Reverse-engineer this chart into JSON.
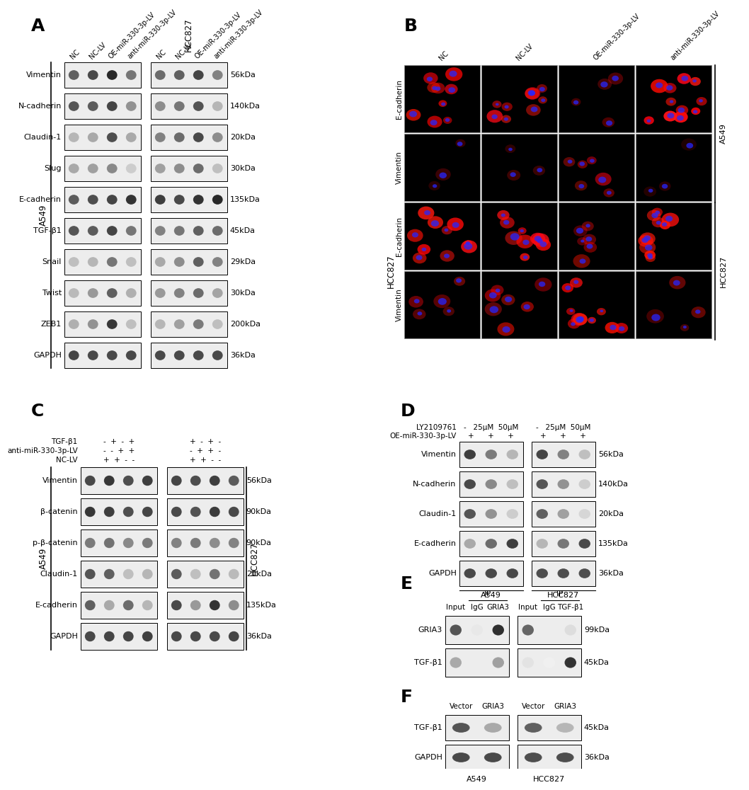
{
  "background_color": "#ffffff",
  "panel_A": {
    "label": "A",
    "col_headers": [
      "NC",
      "NC-LV",
      "OE-miR-330-3p-LV",
      "anti-miR-330-3p-LV"
    ],
    "rows": [
      {
        "label": "Vimentin",
        "kda": "56kDa",
        "i1": [
          0.7,
          0.8,
          0.95,
          0.6
        ],
        "i2": [
          0.65,
          0.7,
          0.82,
          0.55
        ]
      },
      {
        "label": "N-cadherin",
        "kda": "140kDa",
        "i1": [
          0.75,
          0.72,
          0.82,
          0.48
        ],
        "i2": [
          0.5,
          0.6,
          0.76,
          0.32
        ]
      },
      {
        "label": "Claudin-1",
        "kda": "20kDa",
        "i1": [
          0.32,
          0.38,
          0.78,
          0.38
        ],
        "i2": [
          0.55,
          0.65,
          0.8,
          0.5
        ]
      },
      {
        "label": "Slug",
        "kda": "30kDa",
        "i1": [
          0.38,
          0.42,
          0.52,
          0.22
        ],
        "i2": [
          0.42,
          0.5,
          0.65,
          0.28
        ]
      },
      {
        "label": "E-cadherin",
        "kda": "135kDa",
        "i1": [
          0.72,
          0.78,
          0.82,
          0.9
        ],
        "i2": [
          0.85,
          0.8,
          0.9,
          0.95
        ]
      },
      {
        "label": "TGF-β1",
        "kda": "45kDa",
        "i1": [
          0.75,
          0.72,
          0.82,
          0.6
        ],
        "i2": [
          0.55,
          0.6,
          0.7,
          0.65
        ]
      },
      {
        "label": "Snail",
        "kda": "29kDa",
        "i1": [
          0.28,
          0.32,
          0.6,
          0.28
        ],
        "i2": [
          0.38,
          0.5,
          0.7,
          0.55
        ]
      },
      {
        "label": "Twist",
        "kda": "30kDa",
        "i1": [
          0.3,
          0.45,
          0.7,
          0.35
        ],
        "i2": [
          0.45,
          0.55,
          0.65,
          0.4
        ]
      },
      {
        "label": "ZEB1",
        "kda": "200kDa",
        "i1": [
          0.35,
          0.48,
          0.88,
          0.28
        ],
        "i2": [
          0.32,
          0.42,
          0.58,
          0.28
        ]
      },
      {
        "label": "GAPDH",
        "kda": "36kDa",
        "i1": [
          0.82,
          0.8,
          0.8,
          0.8
        ],
        "i2": [
          0.8,
          0.8,
          0.8,
          0.8
        ]
      }
    ]
  },
  "panel_B": {
    "label": "B",
    "col_headers": [
      "NC",
      "NC-LV",
      "OE-miR-330-3p-LV",
      "anti-miR-330-3p-LV"
    ],
    "rows": [
      {
        "label": "E-cadherin",
        "red": [
          0.8,
          0.75,
          0.4,
          0.95
        ],
        "cell_type": "A549"
      },
      {
        "label": "Vimentin",
        "red": [
          0.25,
          0.3,
          0.55,
          0.2
        ],
        "cell_type": "A549"
      },
      {
        "label": "E-cadherin",
        "red": [
          0.85,
          0.8,
          0.5,
          0.9
        ],
        "cell_type": "HCC827"
      },
      {
        "label": "Vimentin",
        "red": [
          0.45,
          0.6,
          0.9,
          0.4
        ],
        "cell_type": "HCC827"
      }
    ]
  },
  "panel_C": {
    "label": "C",
    "treat_labels": [
      "TGF-β1",
      "anti-miR-330-3p-LV",
      "NC-LV"
    ],
    "treat_A549": [
      "-  +  -  +",
      "-  -  +  +",
      "+  +  -  -"
    ],
    "treat_HCC827": [
      "+  -  +  -",
      "-  +  +  -",
      "+  +  -  -"
    ],
    "rows": [
      {
        "label": "Vimentin",
        "kda": "56kDa",
        "i1": [
          0.8,
          0.88,
          0.78,
          0.85
        ],
        "i2": [
          0.82,
          0.78,
          0.85,
          0.72
        ]
      },
      {
        "label": "β-catenin",
        "kda": "90kDa",
        "i1": [
          0.88,
          0.85,
          0.78,
          0.82
        ],
        "i2": [
          0.8,
          0.76,
          0.86,
          0.8
        ]
      },
      {
        "label": "p-β-catenin",
        "kda": "90kDa",
        "i1": [
          0.58,
          0.62,
          0.52,
          0.58
        ],
        "i2": [
          0.55,
          0.58,
          0.5,
          0.55
        ]
      },
      {
        "label": "Claudin-1",
        "kda": "20kDa",
        "i1": [
          0.75,
          0.7,
          0.28,
          0.32
        ],
        "i2": [
          0.72,
          0.28,
          0.62,
          0.3
        ]
      },
      {
        "label": "E-cadherin",
        "kda": "135kDa",
        "i1": [
          0.7,
          0.38,
          0.65,
          0.32
        ],
        "i2": [
          0.8,
          0.45,
          0.9,
          0.5
        ]
      },
      {
        "label": "GAPDH",
        "kda": "36kDa",
        "i1": [
          0.8,
          0.82,
          0.82,
          0.84
        ],
        "i2": [
          0.8,
          0.8,
          0.8,
          0.82
        ]
      }
    ]
  },
  "panel_D": {
    "label": "D",
    "treat_labels": [
      "LY2109761",
      "OE-miR-330-3p-LV"
    ],
    "treat_A549": [
      "-   25μM  50μM",
      "+      +      +"
    ],
    "treat_HCC827": [
      "-   25μM  50μM",
      "+      +      +"
    ],
    "rows": [
      {
        "label": "Vimentin",
        "kda": "56kDa",
        "i1": [
          0.85,
          0.58,
          0.32
        ],
        "i2": [
          0.82,
          0.55,
          0.28
        ]
      },
      {
        "label": "N-cadherin",
        "kda": "140kDa",
        "i1": [
          0.8,
          0.52,
          0.28
        ],
        "i2": [
          0.75,
          0.48,
          0.22
        ]
      },
      {
        "label": "Claudin-1",
        "kda": "20kDa",
        "i1": [
          0.75,
          0.48,
          0.22
        ],
        "i2": [
          0.7,
          0.42,
          0.18
        ]
      },
      {
        "label": "E-cadherin",
        "kda": "135kDa",
        "i1": [
          0.38,
          0.65,
          0.85
        ],
        "i2": [
          0.32,
          0.6,
          0.8
        ]
      },
      {
        "label": "GAPDH",
        "kda": "36kDa",
        "i1": [
          0.8,
          0.8,
          0.8
        ],
        "i2": [
          0.78,
          0.78,
          0.78
        ]
      }
    ]
  },
  "panel_E": {
    "label": "E",
    "left_headers": [
      "Input",
      "IgG",
      "GRIA3"
    ],
    "right_headers": [
      "Input",
      "IgG",
      "TGF-β1"
    ],
    "rows": [
      {
        "label": "GRIA3",
        "kda": "99kDa",
        "i1": [
          0.75,
          0.1,
          0.92
        ],
        "i2": [
          0.68,
          0.08,
          0.15
        ]
      },
      {
        "label": "TGF-β1",
        "kda": "45kDa",
        "i1": [
          0.38,
          0.08,
          0.42
        ],
        "i2": [
          0.12,
          0.06,
          0.9
        ]
      }
    ]
  },
  "panel_F": {
    "label": "F",
    "col_headers": [
      "Vector",
      "GRIA3"
    ],
    "rows": [
      {
        "label": "TGF-β1",
        "kda": "45kDa",
        "i1": [
          0.75,
          0.38
        ],
        "i2": [
          0.7,
          0.32
        ]
      },
      {
        "label": "GAPDH",
        "kda": "36kDa",
        "i1": [
          0.8,
          0.8
        ],
        "i2": [
          0.78,
          0.78
        ]
      }
    ]
  }
}
